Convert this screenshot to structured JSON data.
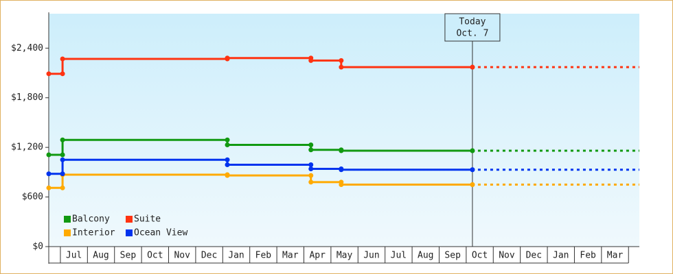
{
  "chart_data": {
    "type": "step",
    "categories": [
      null,
      "Jul",
      "Aug",
      "Sep",
      "Oct",
      "Nov",
      "Dec",
      "Jan",
      "Feb",
      "Mar",
      "Apr",
      "May",
      "Jun",
      "Jul",
      "Aug",
      "Sep",
      "Oct",
      "Nov",
      "Dec",
      "Jan",
      "Feb",
      "Mar"
    ],
    "xlim": [
      0.57,
      22.4
    ],
    "ylim": [
      0,
      2800
    ],
    "yticks": [
      {
        "value": 0,
        "label": "$0"
      },
      {
        "value": 600,
        "label": "$600"
      },
      {
        "value": 1200,
        "label": "$1,200"
      },
      {
        "value": 1800,
        "label": "$1,800"
      },
      {
        "value": 2400,
        "label": "$2,400"
      }
    ],
    "legend": "bottom-left",
    "today": {
      "x": 16.23,
      "label": "Today",
      "date": "Oct. 7"
    },
    "series": [
      {
        "name": "Balcony",
        "color": "#119911",
        "x": [
          0.57,
          1.08,
          7.17,
          10.26,
          11.38,
          16.23
        ],
        "values": [
          1110,
          1290,
          1230,
          1170,
          1160,
          1160
        ]
      },
      {
        "name": "Suite",
        "color": "#ff3311",
        "x": [
          0.57,
          1.08,
          7.17,
          10.26,
          11.38,
          16.23
        ],
        "values": [
          2090,
          2270,
          2280,
          2250,
          2170,
          2170
        ]
      },
      {
        "name": "Interior",
        "color": "#ffaa00",
        "x": [
          0.57,
          1.08,
          7.17,
          10.26,
          11.38,
          16.23
        ],
        "values": [
          710,
          870,
          860,
          780,
          750,
          750
        ]
      },
      {
        "name": "Ocean View",
        "color": "#0033ee",
        "x": [
          0.57,
          1.08,
          7.17,
          10.26,
          11.38,
          16.23
        ],
        "values": [
          880,
          1050,
          990,
          940,
          930,
          930
        ]
      }
    ]
  }
}
